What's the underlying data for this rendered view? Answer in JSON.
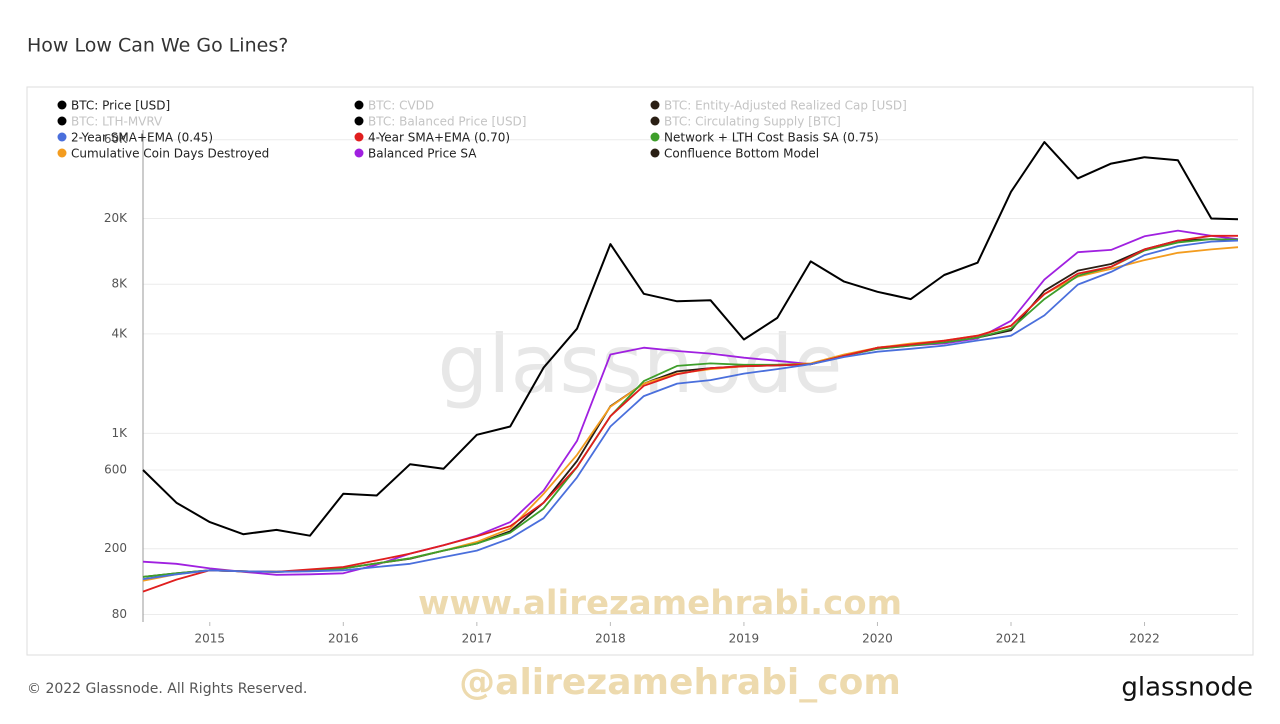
{
  "chart_data": {
    "type": "line",
    "title": "How Low Can We Go Lines?",
    "footer": "© 2022 Glassnode. All Rights Reserved.",
    "brand": "glassnode",
    "watermarks": [
      "glassnode",
      "www.alirezamehrabi.com",
      "@alirezamehrabi_com"
    ],
    "log_y": true,
    "grid": true,
    "x": [
      2014.5,
      2014.75,
      2015,
      2015.25,
      2015.5,
      2015.75,
      2016,
      2016.25,
      2016.5,
      2016.75,
      2017,
      2017.25,
      2017.5,
      2017.75,
      2018,
      2018.25,
      2018.5,
      2018.75,
      2019,
      2019.25,
      2019.5,
      2019.75,
      2020,
      2020.25,
      2020.5,
      2020.75,
      2021,
      2021.25,
      2021.5,
      2021.75,
      2022,
      2022.25,
      2022.5,
      2022.7
    ],
    "xlim": [
      2014.5,
      2022.7
    ],
    "xticks": [
      2015,
      2016,
      2017,
      2018,
      2019,
      2020,
      2021,
      2022
    ],
    "ylim": [
      72,
      120000
    ],
    "yticks": [
      80,
      200,
      600,
      {
        "value": 1000,
        "label": "1K"
      },
      {
        "value": 4000,
        "label": "4K"
      },
      {
        "value": 8000,
        "label": "8K"
      },
      {
        "value": 20000,
        "label": "20K"
      },
      {
        "value": 60000,
        "label": "60K"
      }
    ],
    "series": [
      {
        "name": "BTC: Price [USD]",
        "color": "#000000",
        "values": [
          600,
          380,
          290,
          245,
          260,
          240,
          430,
          420,
          650,
          610,
          980,
          1100,
          2500,
          4300,
          14000,
          7000,
          6300,
          6400,
          3700,
          5000,
          11000,
          8300,
          7200,
          6500,
          9100,
          10800,
          29000,
          58000,
          35000,
          43000,
          47000,
          45000,
          20000,
          19800
        ]
      },
      {
        "name": "2-Year SMA+EMA (0.45)",
        "color": "#4a6fdc",
        "values": [
          131,
          140,
          148,
          146,
          145,
          146,
          148,
          155,
          162,
          178,
          195,
          231,
          306,
          541,
          1100,
          1680,
          2000,
          2100,
          2300,
          2450,
          2620,
          2900,
          3120,
          3250,
          3400,
          3650,
          3900,
          5180,
          7960,
          9500,
          12000,
          13600,
          14500,
          14700
        ]
      },
      {
        "name": "4-Year SMA+EMA (0.70)",
        "color": "#e01e1e",
        "values": [
          110,
          130,
          148,
          146,
          145,
          150,
          155,
          170,
          187,
          210,
          238,
          274,
          380,
          625,
          1270,
          1940,
          2280,
          2480,
          2550,
          2580,
          2620,
          2950,
          3300,
          3450,
          3640,
          3900,
          4480,
          6970,
          9270,
          10200,
          13000,
          14700,
          15700,
          15700
        ]
      },
      {
        "name": "Network + LTH Cost Basis SA (0.75)",
        "color": "#3e9e2a",
        "values": [
          135,
          142,
          148,
          146,
          145,
          147,
          152,
          163,
          175,
          195,
          215,
          250,
          350,
          625,
          1270,
          2070,
          2560,
          2650,
          2600,
          2600,
          2620,
          2950,
          3250,
          3400,
          3550,
          3800,
          4300,
          6500,
          9000,
          10200,
          12800,
          14300,
          15000,
          14900
        ]
      },
      {
        "name": "Cumulative Coin Days Destroyed",
        "color": "#f39c1f",
        "values": [
          128,
          140,
          148,
          146,
          145,
          147,
          152,
          163,
          175,
          195,
          220,
          265,
          430,
          740,
          1450,
          2000,
          2300,
          2450,
          2550,
          2600,
          2650,
          3000,
          3300,
          3500,
          3640,
          3900,
          4480,
          6970,
          8900,
          9900,
          11200,
          12400,
          13000,
          13400
        ]
      },
      {
        "name": "Balanced Price SA",
        "color": "#a020e0",
        "values": [
          167,
          162,
          152,
          145,
          139,
          140,
          142,
          160,
          187,
          210,
          240,
          290,
          450,
          900,
          3000,
          3300,
          3150,
          3040,
          2870,
          2750,
          2620,
          2950,
          3250,
          3400,
          3500,
          3750,
          4800,
          8530,
          12500,
          12900,
          15600,
          16900,
          15700,
          15000
        ]
      },
      {
        "name": "Confluence Bottom Model",
        "color": "#2a1f14",
        "values": [
          135,
          142,
          148,
          146,
          145,
          147,
          152,
          163,
          174,
          195,
          215,
          255,
          380,
          680,
          1460,
          2000,
          2370,
          2480,
          2550,
          2580,
          2620,
          2950,
          3300,
          3450,
          3550,
          3800,
          4200,
          7300,
          9670,
          10600,
          13000,
          14700,
          15000,
          14800
        ]
      }
    ],
    "inactive_series": [
      {
        "name": "BTC: CVDD",
        "color": "#000000"
      },
      {
        "name": "BTC: Entity-Adjusted Realized Cap [USD]",
        "color": "#2a1f14"
      },
      {
        "name": "BTC: LTH-MVRV",
        "color": "#000000"
      },
      {
        "name": "BTC: Balanced Price [USD]",
        "color": "#000000"
      },
      {
        "name": "BTC: Circulating Supply [BTC]",
        "color": "#2a1f14"
      }
    ]
  }
}
